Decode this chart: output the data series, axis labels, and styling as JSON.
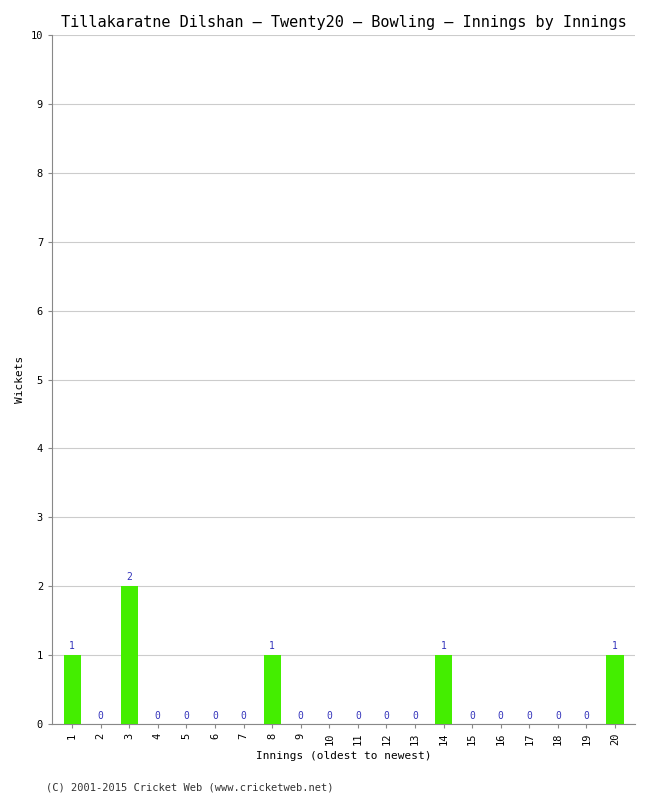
{
  "title": "Tillakaratne Dilshan – Twenty20 – Bowling – Innings by Innings",
  "xlabel": "Innings (oldest to newest)",
  "ylabel": "Wickets",
  "innings": [
    1,
    2,
    3,
    4,
    5,
    6,
    7,
    8,
    9,
    10,
    11,
    12,
    13,
    14,
    15,
    16,
    17,
    18,
    19,
    20
  ],
  "wickets": [
    1,
    0,
    2,
    0,
    0,
    0,
    0,
    1,
    0,
    0,
    0,
    0,
    0,
    1,
    0,
    0,
    0,
    0,
    0,
    1
  ],
  "bar_color": "#44ee00",
  "label_color": "#3333bb",
  "ylim": [
    0,
    10
  ],
  "yticks": [
    0,
    1,
    2,
    3,
    4,
    5,
    6,
    7,
    8,
    9,
    10
  ],
  "background_color": "#ffffff",
  "plot_bg_color": "#ffffff",
  "grid_color": "#cccccc",
  "footer": "(C) 2001-2015 Cricket Web (www.cricketweb.net)",
  "title_fontsize": 11,
  "axis_label_fontsize": 8,
  "tick_fontsize": 7.5,
  "bar_label_fontsize": 7,
  "footer_fontsize": 7.5
}
